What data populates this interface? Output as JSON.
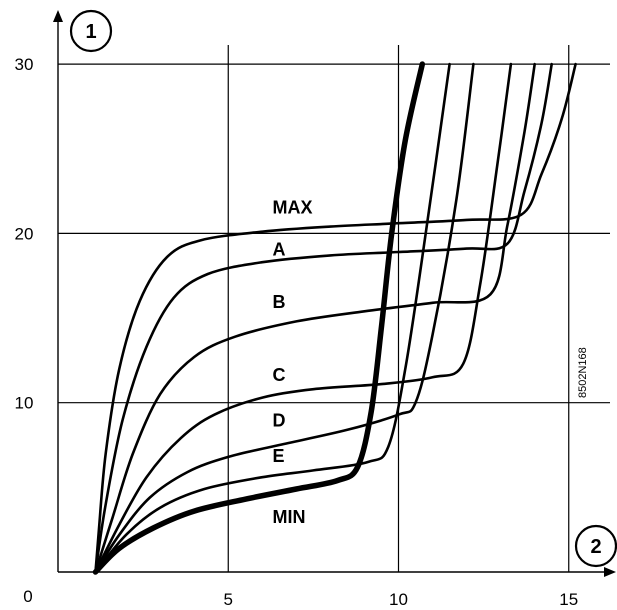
{
  "chart_data": {
    "type": "line",
    "title": "",
    "xlabel": "",
    "ylabel": "",
    "xlim": [
      0,
      16.2
    ],
    "ylim": [
      0,
      30
    ],
    "x_ticks": [
      "5",
      "10",
      "15"
    ],
    "y_ticks": [
      "10",
      "20",
      "30"
    ],
    "origin_label": "0",
    "axis_badges": {
      "y": "1",
      "x": "2"
    },
    "code": "8502N168",
    "grid": true,
    "series": [
      {
        "name": "MAX",
        "points": [
          [
            1.1,
            0
          ],
          [
            1.2,
            2.5
          ],
          [
            1.4,
            7
          ],
          [
            1.8,
            12
          ],
          [
            2.4,
            16
          ],
          [
            3.2,
            18.6
          ],
          [
            4.2,
            19.6
          ],
          [
            6,
            20.1
          ],
          [
            8,
            20.4
          ],
          [
            10,
            20.6
          ],
          [
            12,
            20.8
          ],
          [
            13.6,
            21.1
          ],
          [
            14.2,
            23.5
          ],
          [
            14.8,
            26.8
          ],
          [
            15.2,
            30
          ]
        ]
      },
      {
        "name": "A",
        "points": [
          [
            1.1,
            0
          ],
          [
            1.4,
            4
          ],
          [
            1.9,
            9
          ],
          [
            2.6,
            13.3
          ],
          [
            3.4,
            16.2
          ],
          [
            4.4,
            17.6
          ],
          [
            6,
            18.3
          ],
          [
            8,
            18.7
          ],
          [
            10,
            18.9
          ],
          [
            12,
            19.1
          ],
          [
            13.2,
            19.4
          ],
          [
            13.7,
            22.5
          ],
          [
            14.2,
            26.5
          ],
          [
            14.5,
            30
          ]
        ]
      },
      {
        "name": "B",
        "points": [
          [
            1.1,
            0
          ],
          [
            1.6,
            3.2
          ],
          [
            2.2,
            7
          ],
          [
            3,
            10.5
          ],
          [
            4,
            12.7
          ],
          [
            5.2,
            13.9
          ],
          [
            7,
            14.8
          ],
          [
            9,
            15.4
          ],
          [
            11,
            15.9
          ],
          [
            12.7,
            16.4
          ],
          [
            13.2,
            20.5
          ],
          [
            13.7,
            26
          ],
          [
            14,
            30
          ]
        ]
      },
      {
        "name": "C",
        "points": [
          [
            1.1,
            0
          ],
          [
            1.8,
            2.8
          ],
          [
            2.6,
            5.6
          ],
          [
            3.6,
            7.9
          ],
          [
            4.6,
            9.3
          ],
          [
            6,
            10.3
          ],
          [
            7.5,
            10.8
          ],
          [
            9.5,
            11.1
          ],
          [
            11,
            11.5
          ],
          [
            11.9,
            12.3
          ],
          [
            12.4,
            17
          ],
          [
            12.9,
            24
          ],
          [
            13.3,
            30
          ]
        ]
      },
      {
        "name": "D",
        "points": [
          [
            1.1,
            0
          ],
          [
            1.8,
            2.2
          ],
          [
            2.7,
            4.4
          ],
          [
            3.8,
            5.9
          ],
          [
            5,
            6.8
          ],
          [
            6.5,
            7.5
          ],
          [
            8.5,
            8.4
          ],
          [
            10,
            9.3
          ],
          [
            10.5,
            10
          ],
          [
            11,
            14
          ],
          [
            11.7,
            22
          ],
          [
            12.2,
            30
          ]
        ]
      },
      {
        "name": "E",
        "points": [
          [
            1.1,
            0
          ],
          [
            2,
            2.2
          ],
          [
            3,
            3.8
          ],
          [
            4.3,
            4.9
          ],
          [
            6,
            5.6
          ],
          [
            7.5,
            6
          ],
          [
            9.1,
            6.5
          ],
          [
            9.7,
            7.4
          ],
          [
            10.2,
            12
          ],
          [
            10.8,
            20
          ],
          [
            11.5,
            30
          ]
        ]
      },
      {
        "name": "MIN",
        "points": [
          [
            1.1,
            0
          ],
          [
            1.8,
            1.4
          ],
          [
            2.8,
            2.6
          ],
          [
            4,
            3.6
          ],
          [
            5.5,
            4.3
          ],
          [
            7,
            4.9
          ],
          [
            8.2,
            5.4
          ],
          [
            8.8,
            6.2
          ],
          [
            9.2,
            9.5
          ],
          [
            9.5,
            14.5
          ],
          [
            9.8,
            20
          ],
          [
            10.2,
            25.5
          ],
          [
            10.7,
            30
          ]
        ]
      }
    ],
    "labels": [
      {
        "text": "MAX",
        "x": 12.2,
        "y": 21.6
      },
      {
        "text": "A",
        "x": 12.2,
        "y": 19.1
      },
      {
        "text": "B",
        "x": 12.2,
        "y": 16.0
      },
      {
        "text": "C",
        "x": 12.2,
        "y": 11.7
      },
      {
        "text": "D",
        "x": 12.2,
        "y": 9.0
      },
      {
        "text": "E",
        "x": 12.2,
        "y": 6.9
      },
      {
        "text": "MIN",
        "x": 12.2,
        "y": 3.3
      }
    ]
  }
}
